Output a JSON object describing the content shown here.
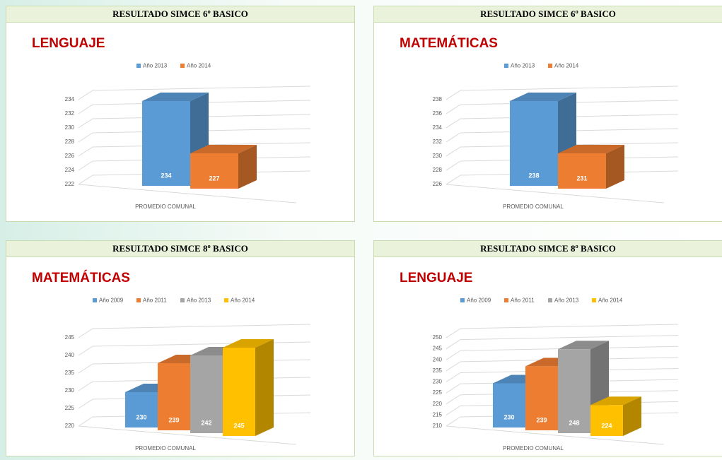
{
  "chart_data": [
    {
      "type": "bar",
      "header": "RESULTADO SIMCE 6º BASICO",
      "title": "LENGUAJE",
      "categories": [
        "PROMEDIO COMUNAL"
      ],
      "series": [
        {
          "name": "Año 2013",
          "color": "#5b9bd5",
          "values": [
            234
          ]
        },
        {
          "name": "Año 2014",
          "color": "#ed7d31",
          "values": [
            227
          ]
        }
      ],
      "ylim": [
        222,
        234
      ],
      "yticks": [
        222,
        224,
        226,
        228,
        230,
        232,
        234
      ],
      "grid": true,
      "legend": "top"
    },
    {
      "type": "bar",
      "header": "RESULTADO SIMCE 6º BASICO",
      "title": "MATEMÁTICAS",
      "categories": [
        "PROMEDIO COMUNAL"
      ],
      "series": [
        {
          "name": "Año 2013",
          "color": "#5b9bd5",
          "values": [
            238
          ]
        },
        {
          "name": "Año 2014",
          "color": "#ed7d31",
          "values": [
            231
          ]
        }
      ],
      "ylim": [
        226,
        238
      ],
      "yticks": [
        226,
        228,
        230,
        232,
        234,
        236,
        238
      ],
      "grid": true,
      "legend": "top"
    },
    {
      "type": "bar",
      "header": "RESULTADO SIMCE 8º BASICO",
      "title": "MATEMÁTICAS",
      "categories": [
        "PROMEDIO COMUNAL"
      ],
      "series": [
        {
          "name": "Año 2009",
          "color": "#5b9bd5",
          "values": [
            230
          ]
        },
        {
          "name": "Año 2011",
          "color": "#ed7d31",
          "values": [
            239
          ]
        },
        {
          "name": "Año 2013",
          "color": "#a5a5a5",
          "values": [
            242
          ]
        },
        {
          "name": "Año 2014",
          "color": "#ffc000",
          "values": [
            245
          ]
        }
      ],
      "ylim": [
        220,
        245
      ],
      "yticks": [
        220,
        225,
        230,
        235,
        240,
        245
      ],
      "grid": true,
      "legend": "top"
    },
    {
      "type": "bar",
      "header": "RESULTADO SIMCE 8º BASICO",
      "title": "LENGUAJE",
      "categories": [
        "PROMEDIO COMUNAL"
      ],
      "series": [
        {
          "name": "Año 2009",
          "color": "#5b9bd5",
          "values": [
            230
          ]
        },
        {
          "name": "Año 2011",
          "color": "#ed7d31",
          "values": [
            239
          ]
        },
        {
          "name": "Año 2013",
          "color": "#a5a5a5",
          "values": [
            248
          ]
        },
        {
          "name": "Año 2014",
          "color": "#ffc000",
          "values": [
            224
          ]
        }
      ],
      "ylim": [
        210,
        250
      ],
      "yticks": [
        210,
        215,
        220,
        225,
        230,
        235,
        240,
        245,
        250
      ],
      "grid": true,
      "legend": "top"
    }
  ]
}
